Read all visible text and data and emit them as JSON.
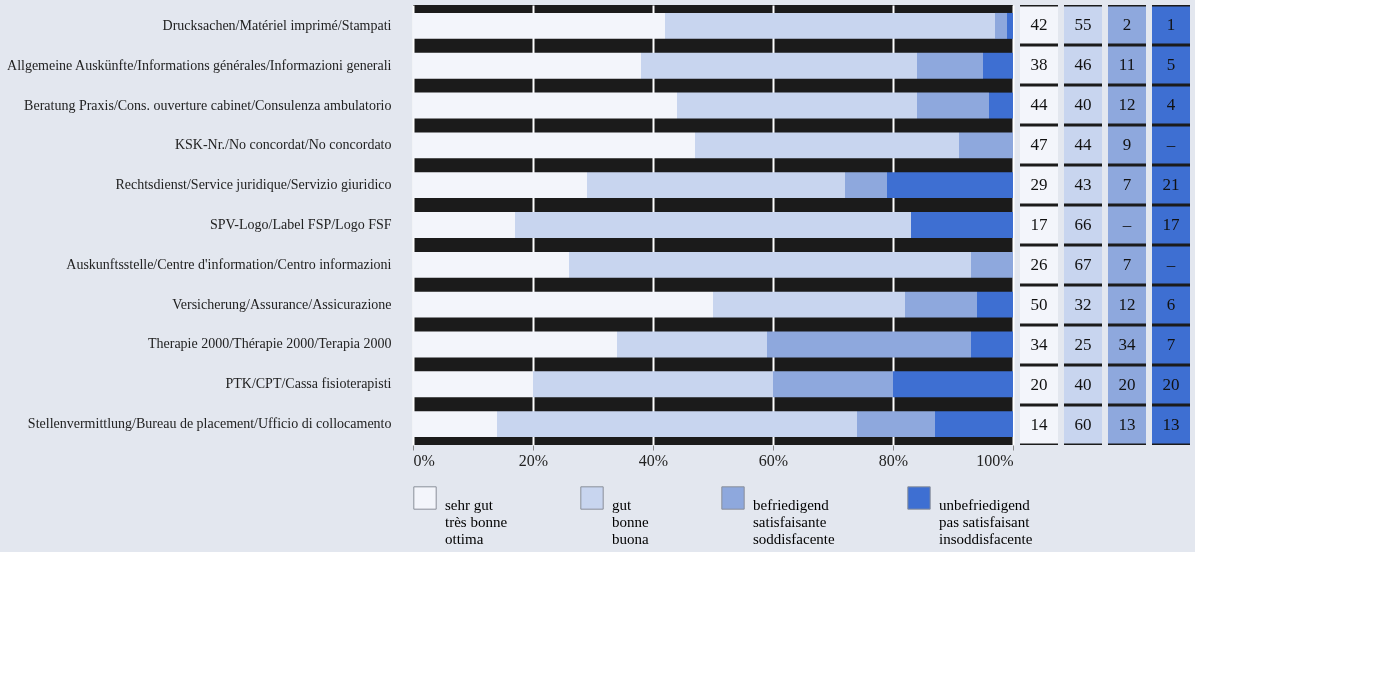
{
  "chart_data": {
    "type": "bar",
    "orientation": "horizontal",
    "stacked": true,
    "categories": [
      "Drucksachen/Matériel imprimé/Stampati",
      "Allgemeine Auskünfte/Informations générales/Informazioni generali",
      "Beratung Praxis/Cons. ouverture cabinet/Consulenza ambulatorio",
      "KSK-Nr./No concordat/No concordato",
      "Rechtsdienst/Service juridique/Servizio giuridico",
      "SPV-Logo/Label FSP/Logo FSF",
      "Auskunftsstelle/Centre d'information/Centro informazioni",
      "Versicherung/Assurance/Assicurazione",
      "Therapie 2000/Thérapie 2000/Terapia 2000",
      "PTK/CPT/Cassa fisioterapisti",
      "Stellenvermittlung/Bureau de placement/Ufficio di collocamento"
    ],
    "series": [
      {
        "name": "sehr gut\ntrès bonne\nottima",
        "color": "#f3f5fb",
        "values": [
          42,
          38,
          44,
          47,
          29,
          17,
          26,
          50,
          34,
          20,
          14
        ],
        "value_labels": [
          "42",
          "38",
          "44",
          "47",
          "29",
          "17",
          "26",
          "50",
          "34",
          "20",
          "14"
        ]
      },
      {
        "name": "gut\nbonne\nbuona",
        "color": "#c8d5ef",
        "values": [
          55,
          46,
          40,
          44,
          43,
          66,
          67,
          32,
          25,
          40,
          60
        ],
        "value_labels": [
          "55",
          "46",
          "40",
          "44",
          "43",
          "66",
          "67",
          "32",
          "25",
          "40",
          "60"
        ]
      },
      {
        "name": "befriedigend\nsatisfaisante\nsoddisfacente",
        "color": "#8ea8dd",
        "values": [
          2,
          11,
          12,
          9,
          7,
          0,
          7,
          12,
          34,
          20,
          13
        ],
        "value_labels": [
          "2",
          "11",
          "12",
          "9",
          "7",
          "–",
          "7",
          "12",
          "34",
          "20",
          "13"
        ]
      },
      {
        "name": "unbefriedigend\npas satisfaisant\ninsoddisfacente",
        "color": "#3e6fd2",
        "values": [
          1,
          5,
          4,
          0,
          21,
          17,
          0,
          6,
          7,
          20,
          13
        ],
        "value_labels": [
          "1",
          "5",
          "4",
          "–",
          "21",
          "17",
          "–",
          "6",
          "7",
          "20",
          "13"
        ]
      }
    ],
    "xlim": [
      0,
      100
    ],
    "xticks": [
      {
        "value": 0,
        "label": "0%"
      },
      {
        "value": 20,
        "label": "20%"
      },
      {
        "value": 40,
        "label": "40%"
      },
      {
        "value": 60,
        "label": "60%"
      },
      {
        "value": 80,
        "label": "80%"
      },
      {
        "value": 100,
        "label": "100%"
      }
    ],
    "grid": "x",
    "legend": "bottom"
  }
}
